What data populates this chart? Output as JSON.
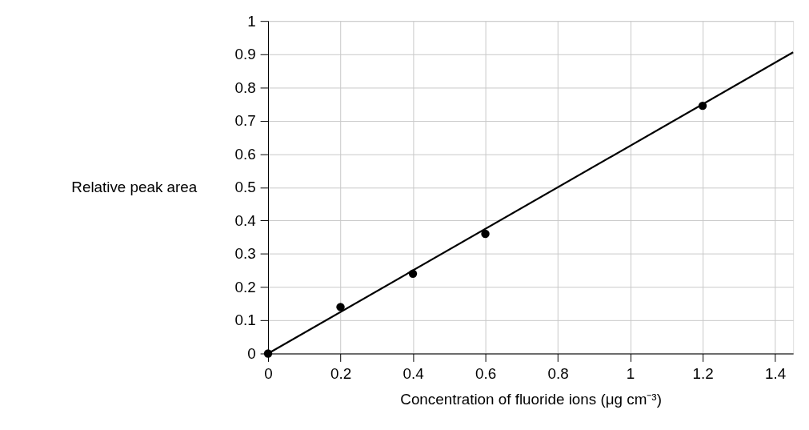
{
  "chart_data": {
    "type": "scatter",
    "xlabel": "Concentration of fluoride ions (μg cm⁻³)",
    "ylabel": "Relative peak area",
    "series": [
      {
        "color": "#000000",
        "marker": "circle",
        "x": [
          0,
          0.2,
          0.4,
          0.6,
          1.2
        ],
        "values": [
          0,
          0.14,
          0.24,
          0.36,
          0.745
        ]
      },
      {
        "type": "line",
        "marker": "none",
        "color": "#000000",
        "x": [
          0,
          1.45
        ],
        "values": [
          0,
          0.906
        ]
      }
    ],
    "xlim": [
      0,
      1.45
    ],
    "ylim": [
      0,
      1
    ],
    "xticks": [
      0,
      0.2,
      0.4,
      0.6,
      0.8,
      1,
      1.2,
      1.4
    ],
    "yticks": [
      0,
      0.1,
      0.2,
      0.3,
      0.4,
      0.5,
      0.6,
      0.7,
      0.8,
      0.9,
      1
    ],
    "grid": true,
    "line_style": "solid"
  }
}
